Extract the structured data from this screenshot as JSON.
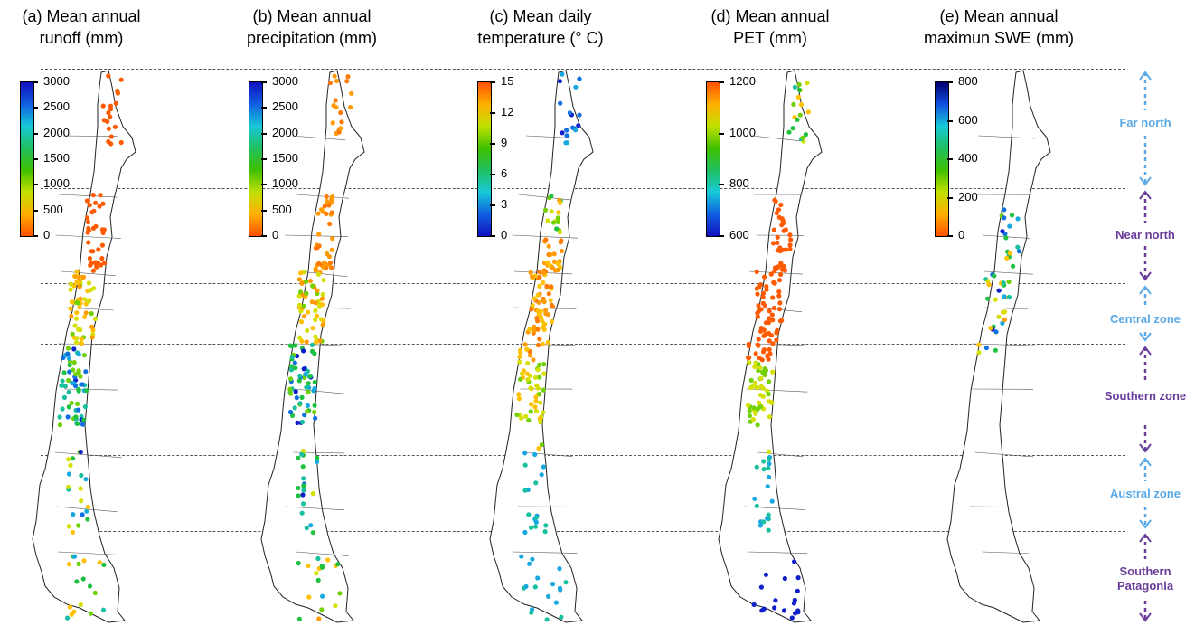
{
  "panels": [
    {
      "title_line1": "(a) Mean annual",
      "title_line2": "runoff (mm)",
      "ticks": [
        "3000",
        "2500",
        "2000",
        "1500",
        "1000",
        "500",
        "0"
      ],
      "scale": "runoff"
    },
    {
      "title_line1": "(b) Mean annual",
      "title_line2": "precipitation (mm)",
      "ticks": [
        "3000",
        "2500",
        "2000",
        "1500",
        "1000",
        "500",
        "0"
      ],
      "scale": "runoff"
    },
    {
      "title_line1": "(c) Mean daily",
      "title_line2": "temperature (° C)",
      "ticks": [
        "15",
        "12",
        "9",
        "6",
        "3",
        "0"
      ],
      "scale": "temp"
    },
    {
      "title_line1": "(d) Mean annual",
      "title_line2": "PET (mm)",
      "ticks": [
        "1200",
        "1000",
        "800",
        "600"
      ],
      "scale": "temp"
    },
    {
      "title_line1": "(e) Mean annual",
      "title_line2": "maximun SWE (mm)",
      "ticks": [
        "800",
        "600",
        "400",
        "200",
        "0"
      ],
      "scale": "runoff"
    }
  ],
  "zones": [
    {
      "name": "Far north",
      "color": "#5aa9e6"
    },
    {
      "name": "Near north",
      "color": "#6a3d9a"
    },
    {
      "name": "Central zone",
      "color": "#5aa9e6"
    },
    {
      "name": "Southern zone",
      "color": "#6a3d9a"
    },
    {
      "name": "Austral zone",
      "color": "#5aa9e6"
    },
    {
      "name": "Southern Patagonia",
      "color": "#6a3d9a"
    }
  ]
}
